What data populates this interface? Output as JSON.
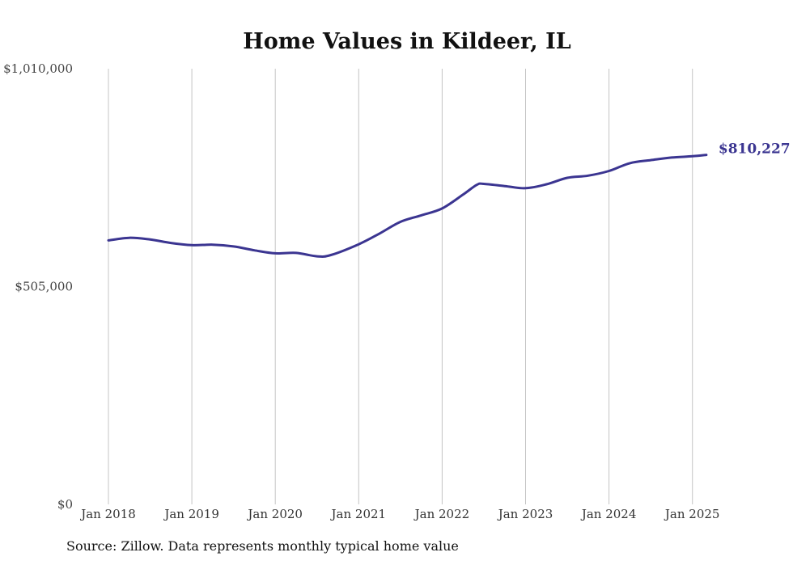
{
  "chart_data": {
    "type": "line",
    "title": "Home Values in Kildeer, IL",
    "xlabel": "",
    "ylabel": "",
    "ylim": [
      0,
      1010000
    ],
    "y_ticks": [
      {
        "value": 0,
        "label": "$0"
      },
      {
        "value": 505000,
        "label": "$505,000"
      },
      {
        "value": 1010000,
        "label": "$1,010,000"
      }
    ],
    "x_ticks": [
      "Jan 2018",
      "Jan 2019",
      "Jan 2020",
      "Jan 2021",
      "Jan 2022",
      "Jan 2023",
      "Jan 2024",
      "Jan 2025"
    ],
    "grid": "vertical",
    "line_color": "#3b3591",
    "series": [
      {
        "points": [
          {
            "x": "2018-01",
            "y": 612000
          },
          {
            "x": "2018-04",
            "y": 618000
          },
          {
            "x": "2018-07",
            "y": 614000
          },
          {
            "x": "2018-10",
            "y": 606000
          },
          {
            "x": "2019-01",
            "y": 601000
          },
          {
            "x": "2019-04",
            "y": 602000
          },
          {
            "x": "2019-07",
            "y": 598000
          },
          {
            "x": "2019-10",
            "y": 589000
          },
          {
            "x": "2020-01",
            "y": 582000
          },
          {
            "x": "2020-04",
            "y": 583000
          },
          {
            "x": "2020-07",
            "y": 575000
          },
          {
            "x": "2020-09",
            "y": 578000
          },
          {
            "x": "2021-01",
            "y": 603000
          },
          {
            "x": "2021-04",
            "y": 628000
          },
          {
            "x": "2021-07",
            "y": 655000
          },
          {
            "x": "2021-10",
            "y": 670000
          },
          {
            "x": "2022-01",
            "y": 686000
          },
          {
            "x": "2022-04",
            "y": 718000
          },
          {
            "x": "2022-06",
            "y": 741000
          },
          {
            "x": "2022-07",
            "y": 743000
          },
          {
            "x": "2022-10",
            "y": 738000
          },
          {
            "x": "2023-01",
            "y": 733000
          },
          {
            "x": "2023-04",
            "y": 742000
          },
          {
            "x": "2023-07",
            "y": 757000
          },
          {
            "x": "2023-10",
            "y": 762000
          },
          {
            "x": "2024-01",
            "y": 773000
          },
          {
            "x": "2024-04",
            "y": 791000
          },
          {
            "x": "2024-07",
            "y": 798000
          },
          {
            "x": "2024-10",
            "y": 804000
          },
          {
            "x": "2025-01",
            "y": 807000
          },
          {
            "x": "2025-03",
            "y": 810227
          }
        ]
      }
    ],
    "end_label": "$810,227",
    "source": "Source: Zillow. Data represents monthly typical home value"
  }
}
